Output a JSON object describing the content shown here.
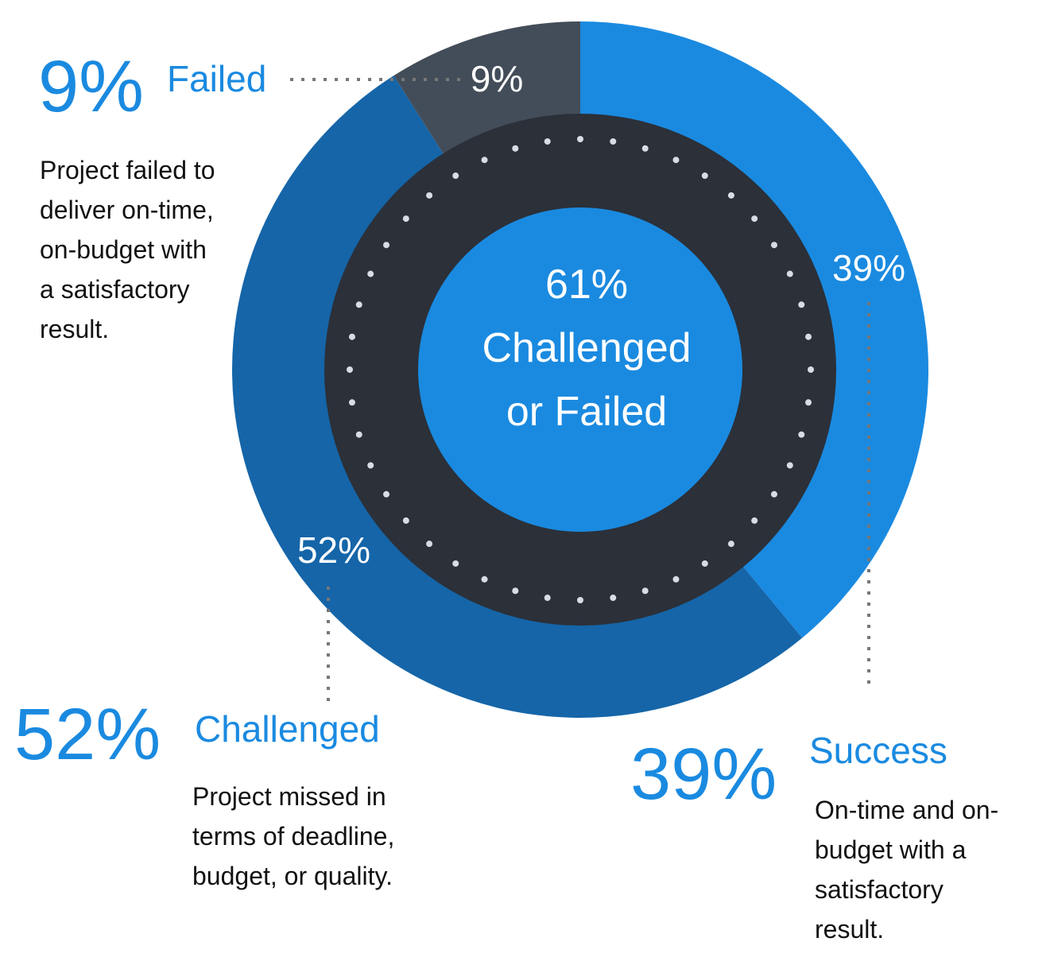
{
  "chart_data": {
    "type": "pie",
    "donut": true,
    "categories": [
      "Success",
      "Challenged",
      "Failed"
    ],
    "values": [
      39,
      52,
      9
    ],
    "value_labels": [
      "39%",
      "52%",
      "9%"
    ],
    "colors": [
      "#1a8ae0",
      "#1565a8",
      "#434d59"
    ],
    "center_text": [
      "61%",
      "Challenged",
      "or Failed"
    ],
    "descriptions": [
      [
        "On-time and on-",
        "budget with a",
        "satisfactory",
        "result."
      ],
      [
        "Project missed in",
        "terms of deadline,",
        "budget, or quality."
      ],
      [
        "Project failed to",
        "deliver on-time,",
        "on-budget with",
        "a satisfactory",
        "result."
      ]
    ]
  }
}
